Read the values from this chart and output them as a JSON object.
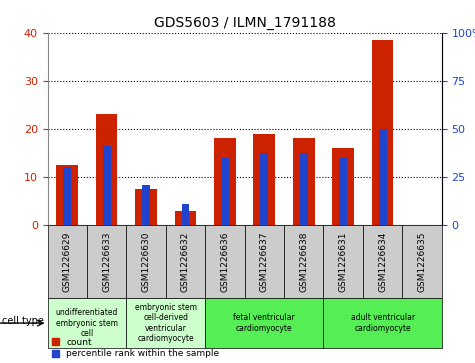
{
  "title": "GDS5603 / ILMN_1791188",
  "samples": [
    "GSM1226629",
    "GSM1226633",
    "GSM1226630",
    "GSM1226632",
    "GSM1226636",
    "GSM1226637",
    "GSM1226638",
    "GSM1226631",
    "GSM1226634",
    "GSM1226635"
  ],
  "counts": [
    12.5,
    23.0,
    7.5,
    3.0,
    18.0,
    19.0,
    18.0,
    16.0,
    38.5,
    0.0
  ],
  "percentiles": [
    30.0,
    41.0,
    21.0,
    11.0,
    35.0,
    37.5,
    37.5,
    35.0,
    50.0,
    0.0
  ],
  "ylim_left": [
    0,
    40
  ],
  "ylim_right": [
    0,
    100
  ],
  "yticks_left": [
    0,
    10,
    20,
    30,
    40
  ],
  "yticks_right": [
    0,
    25,
    50,
    75,
    100
  ],
  "ytick_labels_right": [
    "0",
    "25",
    "50",
    "75",
    "100%"
  ],
  "bar_color": "#cc2200",
  "percentile_color": "#2244cc",
  "bar_width": 0.55,
  "percentile_bar_width": 0.2,
  "cell_type_groups": [
    {
      "label": "undifferentiated\nembryonic stem\ncell",
      "start": 0,
      "end": 1,
      "color": "#ccffcc"
    },
    {
      "label": "embryonic stem\ncell-derived\nventricular\ncardiomyocyte",
      "start": 2,
      "end": 3,
      "color": "#ccffcc"
    },
    {
      "label": "fetal ventricular\ncardiomyocyte",
      "start": 4,
      "end": 6,
      "color": "#55ee55"
    },
    {
      "label": "adult ventricular\ncardiomyocyte",
      "start": 7,
      "end": 9,
      "color": "#55ee55"
    }
  ],
  "xlabel_cell_type": "cell type",
  "legend_count_label": "count",
  "legend_percentile_label": "percentile rank within the sample",
  "tick_label_color_left": "#cc2200",
  "tick_label_color_right": "#2244cc",
  "bg_color_plot": "#ffffff",
  "bg_color_xtick": "#cccccc",
  "spine_color": "#888888"
}
